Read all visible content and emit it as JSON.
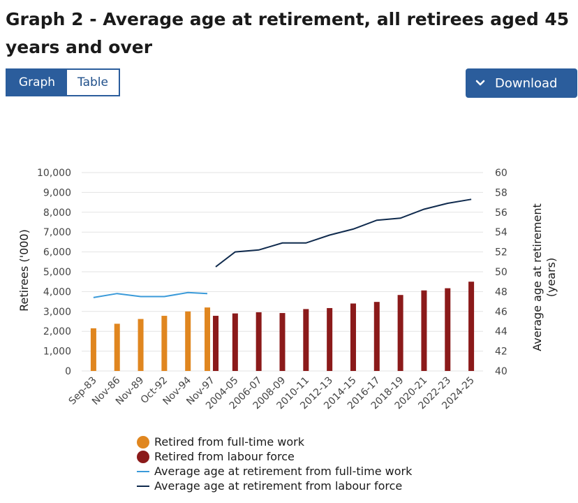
{
  "header": {
    "title": "Graph 2 - Average age at retirement, all retirees aged 45 years and over"
  },
  "view_toggle": {
    "graph_label": "Graph",
    "table_label": "Table",
    "selected": "Graph"
  },
  "download": {
    "label": "Download",
    "icon": "chevron-down-icon"
  },
  "colors": {
    "fulltime_bar": "#e0861f",
    "labour_bar": "#8b1a1a",
    "fulltime_line": "#3a9ad9",
    "labour_line": "#0f2a4d",
    "grid": "#e3e3e3",
    "button": "#2b5d9c"
  },
  "chart_data": {
    "type": "bar",
    "categories": [
      "Sep-83",
      "Nov-86",
      "Nov-89",
      "Oct-92",
      "Nov-94",
      "Nov-97",
      "2004-05",
      "2006-07",
      "2008-09",
      "2010-11",
      "2012-13",
      "2014-15",
      "2016-17",
      "2018-19",
      "2020-21",
      "2022-23",
      "2024-25"
    ],
    "ylabel": "Retirees ('000)",
    "y2label": "Average age at retirement (years)",
    "ylim": [
      0,
      10000
    ],
    "y2lim": [
      40,
      60
    ],
    "yticks": [
      "0",
      "1,000",
      "2,000",
      "3,000",
      "4,000",
      "5,000",
      "6,000",
      "7,000",
      "8,000",
      "9,000",
      "10,000"
    ],
    "y2ticks": [
      "40",
      "42",
      "44",
      "46",
      "48",
      "50",
      "52",
      "54",
      "56",
      "58",
      "60"
    ],
    "grid": true,
    "legend_position": "bottom",
    "series": [
      {
        "name": "Retired from full-time work",
        "type": "bar",
        "axis": "left",
        "values": [
          2150,
          2380,
          2620,
          2780,
          3000,
          3200,
          null,
          null,
          null,
          null,
          null,
          null,
          null,
          null,
          null,
          null,
          null
        ]
      },
      {
        "name": "Retired from labour force",
        "type": "bar",
        "axis": "left",
        "values": [
          null,
          null,
          null,
          null,
          null,
          2780,
          2900,
          2960,
          2920,
          3120,
          3170,
          3400,
          3480,
          3830,
          4060,
          4170,
          4500
        ]
      },
      {
        "name": "Average age at retirement from full-time work",
        "type": "line",
        "axis": "right",
        "values": [
          47.4,
          47.8,
          47.5,
          47.5,
          47.9,
          47.8,
          null,
          null,
          null,
          null,
          null,
          null,
          null,
          null,
          null,
          null,
          null
        ]
      },
      {
        "name": "Average age at retirement from labour force",
        "type": "line",
        "axis": "right",
        "values": [
          null,
          null,
          null,
          null,
          null,
          50.5,
          52.0,
          52.2,
          52.9,
          52.9,
          53.7,
          54.3,
          55.2,
          55.4,
          56.3,
          56.9,
          57.3
        ]
      }
    ]
  }
}
